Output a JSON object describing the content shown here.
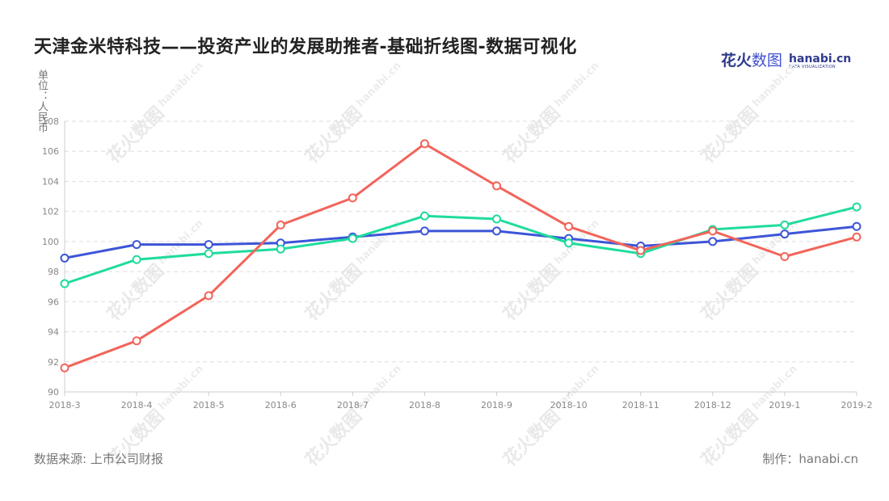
{
  "header": {
    "title": "天津金米特科技——投资产业的发展助推者-基础折线图-数据可视化"
  },
  "logo": {
    "zh_main": "花火",
    "zh_accent": "数图",
    "en_brand": "hanabi.cn",
    "en_sub": "DATA VISUALIZATION"
  },
  "unit_label": "单位：人民币",
  "footer": {
    "source": "数据来源: 上市公司财报",
    "credit": "制作：hanabi.cn"
  },
  "watermark": {
    "zh": "花火数图",
    "en": "hanabi.cn"
  },
  "colors": {
    "series_blue": "#3d55d8",
    "series_green": "#1fdc9c",
    "series_red": "#f2645a",
    "grid": "#dddddd"
  },
  "chart_data": {
    "type": "line",
    "title": "",
    "xlabel": "",
    "ylabel": "单位：人民币",
    "categories": [
      "2018-3",
      "2018-4",
      "2018-5",
      "2018-6",
      "2018-7",
      "2018-8",
      "2018-9",
      "2018-10",
      "2018-11",
      "2018-12",
      "2019-1",
      "2019-2"
    ],
    "ylim": [
      90,
      108
    ],
    "yticks": [
      90,
      92,
      94,
      96,
      98,
      100,
      102,
      104,
      106,
      108
    ],
    "grid": true,
    "legend": "none",
    "series": [
      {
        "color": "#3d55d8",
        "values": [
          98.9,
          99.8,
          99.8,
          99.9,
          100.3,
          100.7,
          100.7,
          100.2,
          99.7,
          100.0,
          100.5,
          101.0
        ]
      },
      {
        "color": "#1fdc9c",
        "values": [
          97.2,
          98.8,
          99.2,
          99.5,
          100.2,
          101.7,
          101.5,
          99.9,
          99.2,
          100.8,
          101.1,
          102.3
        ]
      },
      {
        "color": "#f2645a",
        "values": [
          91.6,
          93.4,
          96.4,
          101.1,
          102.9,
          106.5,
          103.7,
          101.0,
          99.4,
          100.7,
          99.0,
          100.3
        ]
      }
    ]
  }
}
